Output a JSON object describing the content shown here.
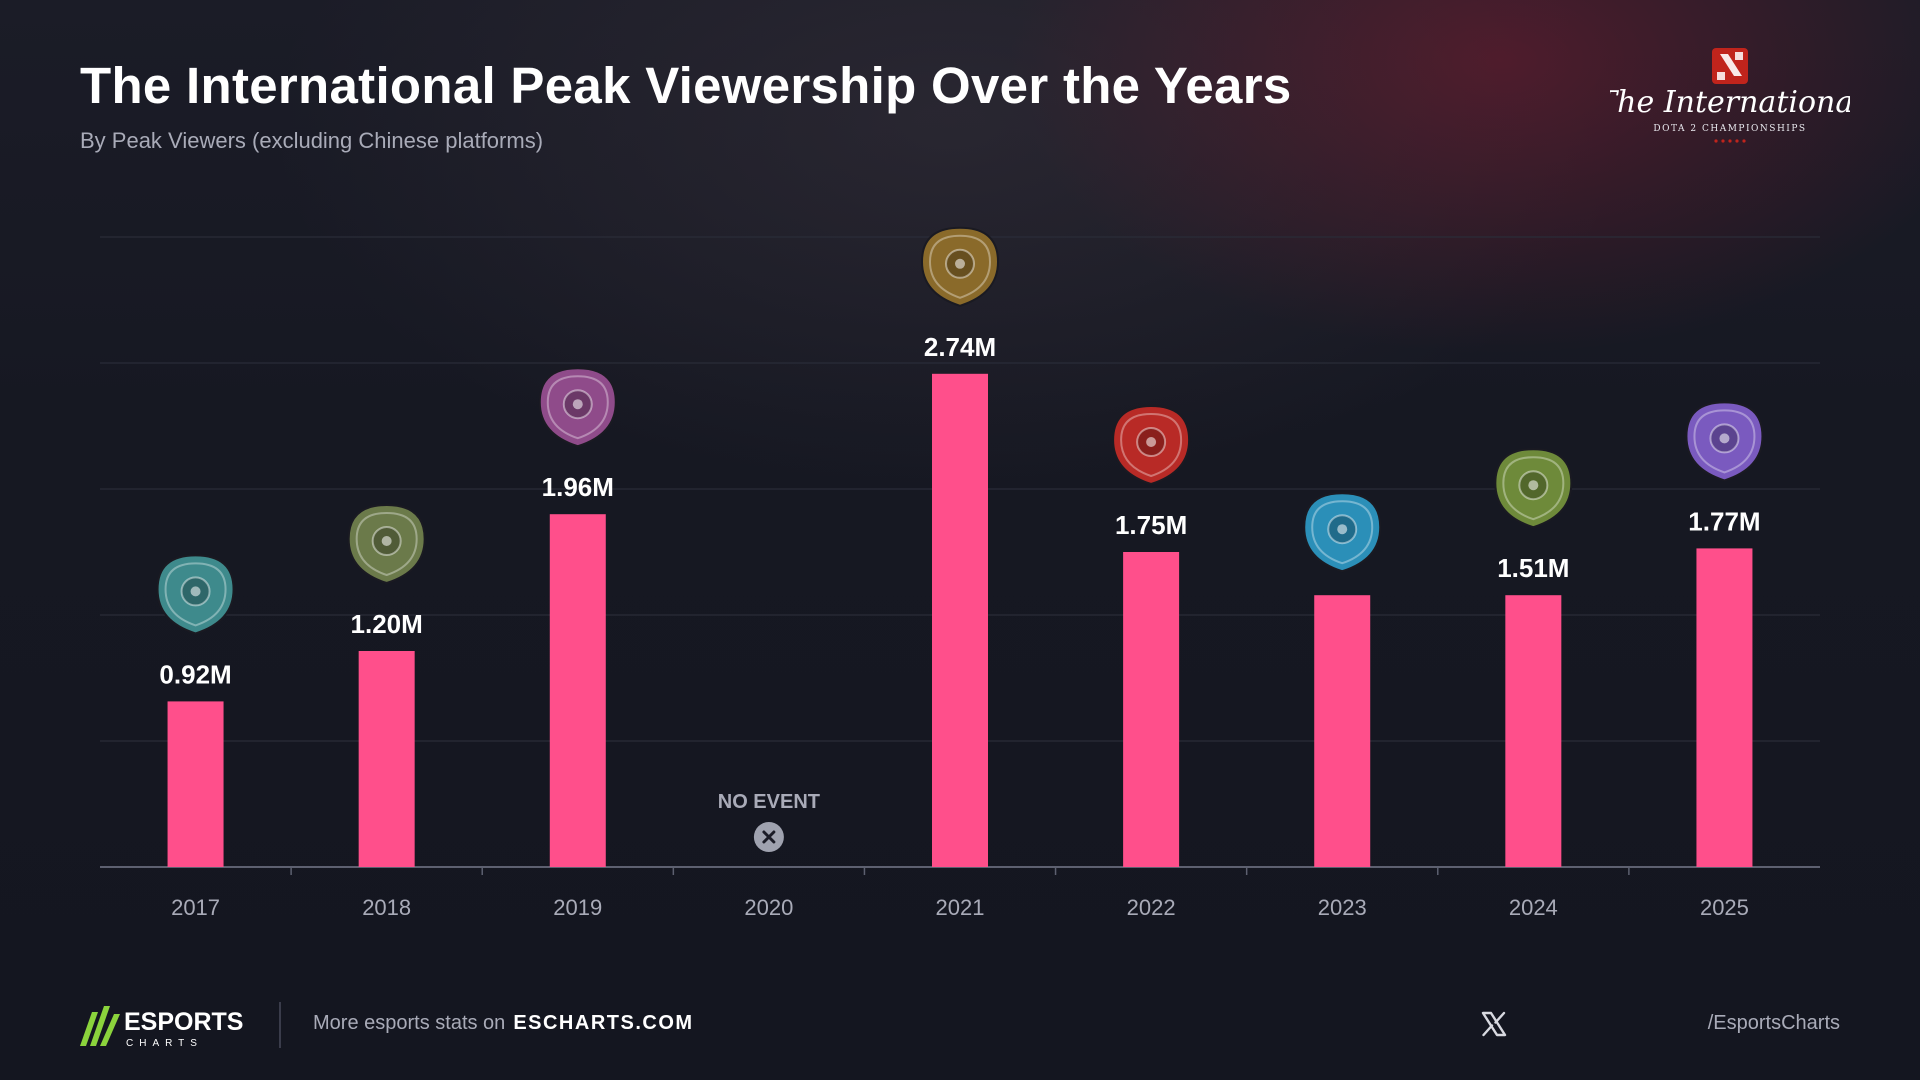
{
  "header": {
    "title": "The International Peak Viewership Over the Years",
    "subtitle": "By Peak Viewers (excluding Chinese platforms)"
  },
  "brand": {
    "logo_script": "The International",
    "logo_caption": "DOTA 2 CHAMPIONSHIPS",
    "logo_icon": "dota2-logo-icon"
  },
  "chart_data": {
    "type": "bar",
    "categories": [
      "2017",
      "2018",
      "2019",
      "2020",
      "2021",
      "2022",
      "2023",
      "2024",
      "2025"
    ],
    "values": [
      0.92,
      1.2,
      1.96,
      null,
      2.74,
      1.75,
      1.51,
      1.51,
      1.77
    ],
    "value_labels": [
      "0.92M",
      "1.20M",
      "1.96M",
      "",
      "2.74M",
      "1.75M",
      "",
      "1.51M",
      "1.77M"
    ],
    "annotations": [
      {
        "category": "2020",
        "text": "NO EVENT",
        "icon": "close-circle-icon"
      }
    ],
    "bar_icons": [
      "aegis-icon",
      "aegis-icon",
      "aegis-icon",
      "",
      "aegis-icon",
      "aegis-icon",
      "aegis-icon",
      "aegis-icon",
      "aegis-icon"
    ],
    "ylim": [
      0,
      3.5
    ],
    "grid": true,
    "colors": {
      "bar": "#ff4f8b",
      "grid": "#2a2c38",
      "axis": "#5d6070",
      "aegis": [
        "#3e8a8c",
        "#6b7a4a",
        "#8f4b8a",
        "",
        "#8a6a2a",
        "#b82a26",
        "#2b8fb8",
        "#6e8a3a",
        "#7a5abf"
      ]
    }
  },
  "footer": {
    "brand_name": "ESPORTS",
    "brand_sub": "CHARTS",
    "more_text": "More esports stats on",
    "site": "ESCHARTS.COM",
    "social_icon": "x-twitter-icon",
    "handle": "/EsportsCharts"
  }
}
